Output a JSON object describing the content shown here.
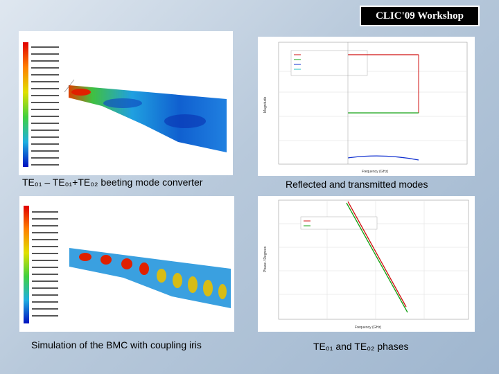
{
  "header": {
    "workshop_label": "CLIC'09 Workshop"
  },
  "captions": {
    "top_left": "TE₀₁ – TE₀₁+TE₀₂ beeting mode converter",
    "top_right": "Reflected and transmitted modes",
    "bottom_left": "Simulation of the BMC with coupling iris",
    "bottom_right": "TE₀₁ and TE₀₂ phases"
  },
  "panels": {
    "reflected": {
      "ylabel": "Magnitude",
      "xlabel": "Frequency (GHz)"
    },
    "phases": {
      "ylabel": "Phase / Degrees",
      "xlabel": "Frequency (GHz)"
    }
  },
  "colors": {
    "background": "#b8c9db",
    "red_curve": "#d01010",
    "green_curve": "#10a010",
    "blue_curve": "#1030d0"
  }
}
